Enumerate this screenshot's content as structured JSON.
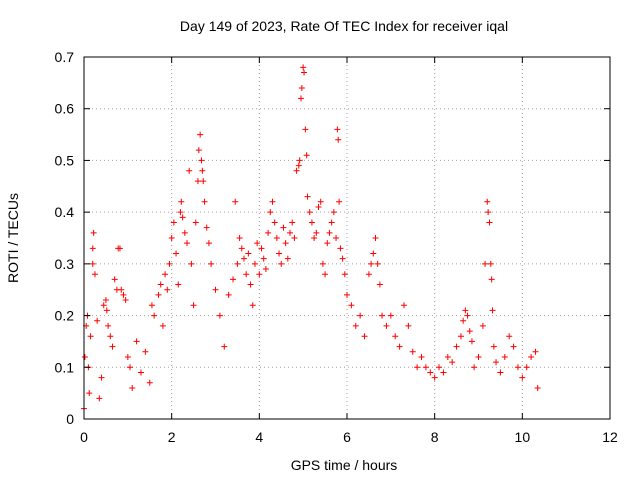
{
  "chart_data": {
    "type": "scatter",
    "title": "Day 149 of 2023, Rate Of TEC Index for receiver iqal",
    "xlabel": "GPS time / hours",
    "ylabel": "ROTI / TECUs",
    "xlim": [
      0,
      12
    ],
    "ylim": [
      0,
      0.7
    ],
    "x_ticks": [
      "0",
      "2",
      "4",
      "6",
      "8",
      "10",
      "12"
    ],
    "y_ticks": [
      "0",
      "0.1",
      "0.2",
      "0.3",
      "0.4",
      "0.5",
      "0.6",
      "0.7"
    ],
    "grid": true,
    "marker": "+",
    "series": [
      {
        "name": "ROTI",
        "color": "#ff0000",
        "points": [
          [
            0.0,
            0.02
          ],
          [
            0.02,
            0.12
          ],
          [
            0.05,
            0.18
          ],
          [
            0.08,
            0.2
          ],
          [
            0.1,
            0.1
          ],
          [
            0.12,
            0.05
          ],
          [
            0.15,
            0.16
          ],
          [
            0.2,
            0.3
          ],
          [
            0.2,
            0.33
          ],
          [
            0.22,
            0.36
          ],
          [
            0.25,
            0.28
          ],
          [
            0.3,
            0.19
          ],
          [
            0.35,
            0.04
          ],
          [
            0.4,
            0.08
          ],
          [
            0.45,
            0.22
          ],
          [
            0.5,
            0.23
          ],
          [
            0.52,
            0.21
          ],
          [
            0.55,
            0.18
          ],
          [
            0.6,
            0.16
          ],
          [
            0.65,
            0.14
          ],
          [
            0.7,
            0.27
          ],
          [
            0.75,
            0.25
          ],
          [
            0.78,
            0.33
          ],
          [
            0.82,
            0.33
          ],
          [
            0.85,
            0.25
          ],
          [
            0.9,
            0.24
          ],
          [
            0.95,
            0.23
          ],
          [
            1.0,
            0.12
          ],
          [
            1.05,
            0.1
          ],
          [
            1.1,
            0.06
          ],
          [
            1.2,
            0.15
          ],
          [
            1.3,
            0.09
          ],
          [
            1.4,
            0.13
          ],
          [
            1.5,
            0.07
          ],
          [
            1.55,
            0.22
          ],
          [
            1.6,
            0.2
          ],
          [
            1.7,
            0.24
          ],
          [
            1.75,
            0.26
          ],
          [
            1.8,
            0.18
          ],
          [
            1.85,
            0.28
          ],
          [
            1.9,
            0.25
          ],
          [
            1.95,
            0.3
          ],
          [
            2.0,
            0.35
          ],
          [
            2.05,
            0.38
          ],
          [
            2.1,
            0.32
          ],
          [
            2.15,
            0.26
          ],
          [
            2.2,
            0.4
          ],
          [
            2.22,
            0.42
          ],
          [
            2.25,
            0.39
          ],
          [
            2.3,
            0.36
          ],
          [
            2.35,
            0.34
          ],
          [
            2.4,
            0.48
          ],
          [
            2.45,
            0.3
          ],
          [
            2.5,
            0.22
          ],
          [
            2.55,
            0.38
          ],
          [
            2.6,
            0.46
          ],
          [
            2.62,
            0.52
          ],
          [
            2.65,
            0.55
          ],
          [
            2.68,
            0.5
          ],
          [
            2.7,
            0.48
          ],
          [
            2.72,
            0.46
          ],
          [
            2.75,
            0.42
          ],
          [
            2.8,
            0.37
          ],
          [
            2.85,
            0.34
          ],
          [
            2.9,
            0.3
          ],
          [
            3.0,
            0.25
          ],
          [
            3.1,
            0.2
          ],
          [
            3.2,
            0.14
          ],
          [
            3.3,
            0.24
          ],
          [
            3.4,
            0.27
          ],
          [
            3.45,
            0.42
          ],
          [
            3.5,
            0.3
          ],
          [
            3.55,
            0.35
          ],
          [
            3.6,
            0.33
          ],
          [
            3.65,
            0.31
          ],
          [
            3.7,
            0.28
          ],
          [
            3.75,
            0.32
          ],
          [
            3.8,
            0.26
          ],
          [
            3.85,
            0.22
          ],
          [
            3.9,
            0.3
          ],
          [
            3.95,
            0.34
          ],
          [
            4.0,
            0.28
          ],
          [
            4.05,
            0.33
          ],
          [
            4.1,
            0.31
          ],
          [
            4.15,
            0.29
          ],
          [
            4.2,
            0.36
          ],
          [
            4.25,
            0.4
          ],
          [
            4.3,
            0.42
          ],
          [
            4.35,
            0.38
          ],
          [
            4.4,
            0.35
          ],
          [
            4.45,
            0.32
          ],
          [
            4.5,
            0.3
          ],
          [
            4.55,
            0.37
          ],
          [
            4.6,
            0.34
          ],
          [
            4.65,
            0.31
          ],
          [
            4.7,
            0.36
          ],
          [
            4.75,
            0.38
          ],
          [
            4.8,
            0.35
          ],
          [
            4.85,
            0.48
          ],
          [
            4.9,
            0.49
          ],
          [
            4.92,
            0.5
          ],
          [
            4.95,
            0.62
          ],
          [
            4.97,
            0.64
          ],
          [
            5.0,
            0.68
          ],
          [
            5.02,
            0.67
          ],
          [
            5.05,
            0.56
          ],
          [
            5.08,
            0.51
          ],
          [
            5.1,
            0.43
          ],
          [
            5.15,
            0.4
          ],
          [
            5.2,
            0.38
          ],
          [
            5.25,
            0.35
          ],
          [
            5.3,
            0.36
          ],
          [
            5.35,
            0.41
          ],
          [
            5.4,
            0.42
          ],
          [
            5.45,
            0.3
          ],
          [
            5.5,
            0.28
          ],
          [
            5.55,
            0.34
          ],
          [
            5.6,
            0.36
          ],
          [
            5.65,
            0.38
          ],
          [
            5.7,
            0.4
          ],
          [
            5.75,
            0.35
          ],
          [
            5.78,
            0.56
          ],
          [
            5.8,
            0.54
          ],
          [
            5.82,
            0.42
          ],
          [
            5.85,
            0.33
          ],
          [
            5.9,
            0.31
          ],
          [
            5.95,
            0.28
          ],
          [
            6.0,
            0.24
          ],
          [
            6.1,
            0.22
          ],
          [
            6.2,
            0.18
          ],
          [
            6.3,
            0.2
          ],
          [
            6.4,
            0.16
          ],
          [
            6.5,
            0.28
          ],
          [
            6.55,
            0.3
          ],
          [
            6.6,
            0.32
          ],
          [
            6.65,
            0.35
          ],
          [
            6.7,
            0.3
          ],
          [
            6.75,
            0.26
          ],
          [
            6.8,
            0.2
          ],
          [
            6.9,
            0.18
          ],
          [
            7.0,
            0.2
          ],
          [
            7.1,
            0.16
          ],
          [
            7.2,
            0.14
          ],
          [
            7.3,
            0.22
          ],
          [
            7.4,
            0.18
          ],
          [
            7.5,
            0.13
          ],
          [
            7.6,
            0.1
          ],
          [
            7.7,
            0.12
          ],
          [
            7.8,
            0.1
          ],
          [
            7.9,
            0.09
          ],
          [
            8.0,
            0.08
          ],
          [
            8.1,
            0.1
          ],
          [
            8.2,
            0.09
          ],
          [
            8.3,
            0.12
          ],
          [
            8.4,
            0.11
          ],
          [
            8.5,
            0.14
          ],
          [
            8.6,
            0.16
          ],
          [
            8.65,
            0.19
          ],
          [
            8.7,
            0.21
          ],
          [
            8.75,
            0.2
          ],
          [
            8.8,
            0.17
          ],
          [
            8.85,
            0.15
          ],
          [
            8.9,
            0.1
          ],
          [
            9.0,
            0.12
          ],
          [
            9.1,
            0.18
          ],
          [
            9.15,
            0.3
          ],
          [
            9.2,
            0.42
          ],
          [
            9.22,
            0.4
          ],
          [
            9.25,
            0.38
          ],
          [
            9.28,
            0.3
          ],
          [
            9.3,
            0.27
          ],
          [
            9.32,
            0.21
          ],
          [
            9.35,
            0.14
          ],
          [
            9.4,
            0.11
          ],
          [
            9.5,
            0.09
          ],
          [
            9.6,
            0.12
          ],
          [
            9.7,
            0.16
          ],
          [
            9.8,
            0.14
          ],
          [
            9.9,
            0.1
          ],
          [
            10.0,
            0.08
          ],
          [
            10.1,
            0.1
          ],
          [
            10.2,
            0.12
          ],
          [
            10.3,
            0.13
          ],
          [
            10.35,
            0.06
          ]
        ]
      }
    ]
  }
}
